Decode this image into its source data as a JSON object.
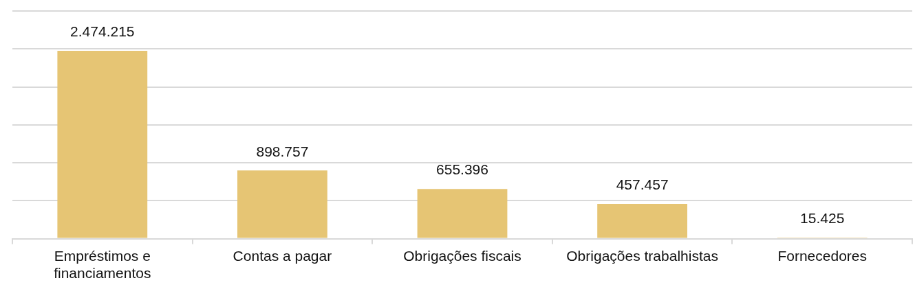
{
  "chart_data": {
    "type": "bar",
    "categories": [
      "Empréstimos e financiamentos",
      "Contas a pagar",
      "Obrigações fiscais",
      "Obrigações trabalhistas",
      "Fornecedores"
    ],
    "values": [
      2474215,
      898757,
      655396,
      457457,
      15425
    ],
    "value_labels": [
      "2.474.215",
      "898.757",
      "655.396",
      "457.457",
      "15.425"
    ],
    "color": "#e6c574",
    "ylim": [
      0,
      3000000
    ],
    "yticks": [
      {
        "value": 0,
        "label": null
      },
      {
        "value": 500000,
        "label": null
      },
      {
        "value": 1000000,
        "label": null
      },
      {
        "value": 1500000,
        "label": null
      },
      {
        "value": 2000000,
        "label": null
      },
      {
        "value": 2500000,
        "label": null
      },
      {
        "value": 3000000,
        "label": null
      }
    ],
    "grid": "y",
    "tick_labels": "x"
  }
}
